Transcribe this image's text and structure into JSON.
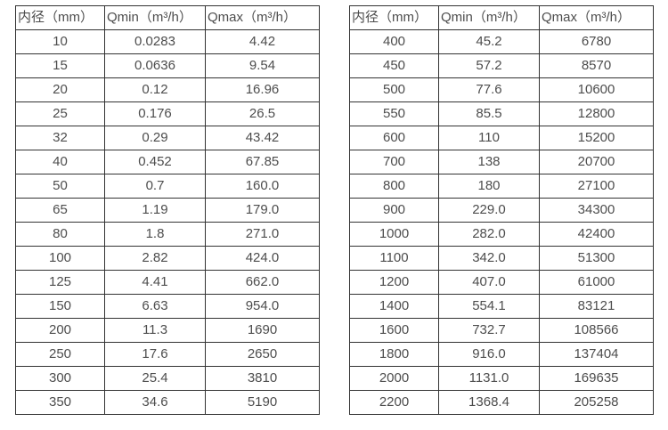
{
  "colors": {
    "background": "#ffffff",
    "border": "#333333",
    "text": "#4d4d4d"
  },
  "chart_data": [
    {
      "type": "table",
      "columns": [
        "内径（mm）",
        "Qmin（m³/h）",
        "Qmax（m³/h）"
      ],
      "rows": [
        [
          "10",
          "0.0283",
          "4.42"
        ],
        [
          "15",
          "0.0636",
          "9.54"
        ],
        [
          "20",
          "0.12",
          "16.96"
        ],
        [
          "25",
          "0.176",
          "26.5"
        ],
        [
          "32",
          "0.29",
          "43.42"
        ],
        [
          "40",
          "0.452",
          "67.85"
        ],
        [
          "50",
          "0.7",
          "160.0"
        ],
        [
          "65",
          "1.19",
          "179.0"
        ],
        [
          "80",
          "1.8",
          "271.0"
        ],
        [
          "100",
          "2.82",
          "424.0"
        ],
        [
          "125",
          "4.41",
          "662.0"
        ],
        [
          "150",
          "6.63",
          "954.0"
        ],
        [
          "200",
          "11.3",
          "1690"
        ],
        [
          "250",
          "17.6",
          "2650"
        ],
        [
          "300",
          "25.4",
          "3810"
        ],
        [
          "350",
          "34.6",
          "5190"
        ]
      ]
    },
    {
      "type": "table",
      "columns": [
        "内径（mm）",
        "Qmin（m³/h）",
        "Qmax（m³/h）"
      ],
      "rows": [
        [
          "400",
          "45.2",
          "6780"
        ],
        [
          "450",
          "57.2",
          "8570"
        ],
        [
          "500",
          "77.6",
          "10600"
        ],
        [
          "550",
          "85.5",
          "12800"
        ],
        [
          "600",
          "110",
          "15200"
        ],
        [
          "700",
          "138",
          "20700"
        ],
        [
          "800",
          "180",
          "27100"
        ],
        [
          "900",
          "229.0",
          "34300"
        ],
        [
          "1000",
          "282.0",
          "42400"
        ],
        [
          "1100",
          "342.0",
          "51300"
        ],
        [
          "1200",
          "407.0",
          "61000"
        ],
        [
          "1400",
          "554.1",
          "83121"
        ],
        [
          "1600",
          "732.7",
          "108566"
        ],
        [
          "1800",
          "916.0",
          "137404"
        ],
        [
          "2000",
          "1131.0",
          "169635"
        ],
        [
          "2200",
          "1368.4",
          "205258"
        ]
      ]
    }
  ]
}
